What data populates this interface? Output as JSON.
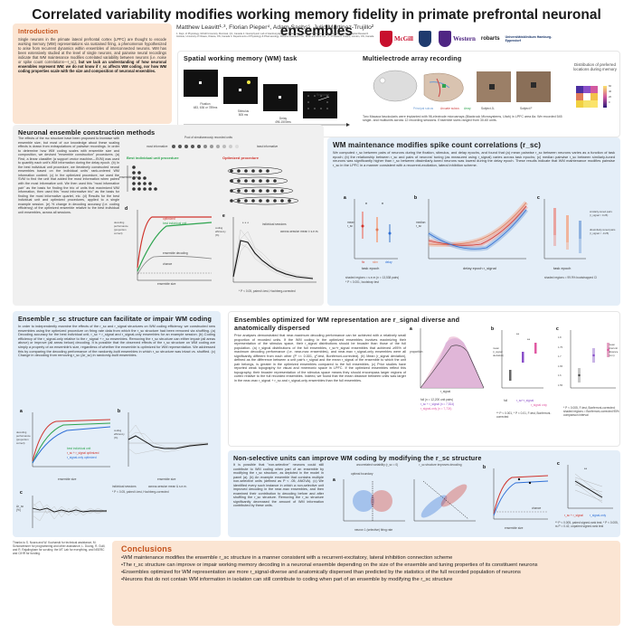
{
  "poster": {
    "title": "Correlated variability modifies working memory fidelity in primate prefrontal neuronal ensembles",
    "authors": "Matthew Leavitt¹·³, Florian Pieper⁴, Adam Sachs⁵, Julio Martinez-Trujillo²",
    "affiliations": "1. Dept. of Physiology, McGill University, Montreal, QC, Canada 2. Neurophysiol. Lab of Hamburg-Eppendorf, Hamburg, Germany 3. Division of Neurosurgery, Ottawa Hospital Research Institute, University of Ottawa, Ottawa, ON, Canada 4. Departments of Physiology & Pharmacology, Robarts Research Inst., Brain and Mind Inst., U. of Western Ontario, London, ON, Canada"
  },
  "logos": {
    "mcgill": "McGill",
    "western": "Western",
    "robarts": "robarts",
    "uke": "Universitätsklinikum Hamburg-Eppendorf"
  },
  "intro": {
    "heading": "Introduction",
    "text": "Single neurons in the primate lateral prefrontal cortex (LPFC) are thought to encode working memory (WM) representations via sustained firing, a phenomenon hypothesized to arise from recurrent dynamics within ensembles of interconnected neurons. WM has been extensively studied at the level of single neurons, and pairwise neural recordings indicate that WM maintenance modifies correlated variability between neurons (i.e. noise or spike count correlations—r_sc),",
    "bold": "but we lack an understanding of how neuronal ensembles represent WM: we do not know if r_sc affects WM coding, nor how WM coding properties scale with the size and composition of neuronal ensembles."
  },
  "task": {
    "heading": "Spatial working memory (WM) task",
    "epochs": [
      {
        "name": "Fixation",
        "dur": "483, 636 or 789ms"
      },
      {
        "name": "Stimulus",
        "dur": "505 ms"
      },
      {
        "name": "Delay",
        "dur": "496-1500ms"
      },
      {
        "name": "Response",
        "dur": ""
      }
    ]
  },
  "array": {
    "heading": "Multielectrode array recording",
    "legend_items": [
      "Principal sulcus",
      "Arcuate sulcus",
      "Array"
    ],
    "subjects": [
      "Subject JL",
      "Subject F"
    ],
    "caption": "Two Macaca fascicularis were implanted with 96-electrode microarrays (Blackrock Microsystems, Utah) in LPFC area 8a. We recorded 545 single- and multiunits across 12 recording sessions. Ensemble sizes ranged from 30-60 units.",
    "map_title": "Distribution of preferred locations during memory",
    "cbar_ticks": [
      "60",
      "40",
      "20",
      "0"
    ],
    "cbar_label": "Number of units"
  },
  "construction": {
    "heading": "Neuronal ensemble construction methods",
    "text": "The effects of the rsc structure have been proposed to increase with ensemble size, but most of our knowledge about these scaling effects is drawn from extrapolations of pairwise recordings. In order to determine how WM coding scales with ensemble size and composition, we devised \"ensemble construction\" procedures. (a) First, a linear classifier (a support vector machine—SVM) was used to quantify each unit's WM information during the delay epoch. (b) In the best individual unit procedure, we iteratively constructed neural ensembles based on the individual units' rank-ordered WM information content. (c) In the optimized procedure, we used the SVM to find the unit that added the most information when paired with the most informative unit. We then used this \"most informative pair\" as the basis for finding the trio of units that maximized WM information, then used this \"most informative trio\" as the basis for finding the most informative quartet, etc. (d) Results for the best individual unit and optimized procedures, applied to a single example session. (e) % change in decoding accuracy (i.e. coding efficiency) of the optimized ensemble relative to the best individual unit ensembles, across all sessions.",
    "pool_label": "Pool of simultaneously recorded units",
    "most_info": "most informative",
    "least_info": "least informative",
    "best_label": "Best individual unit procedure",
    "opt_label": "Optimized procedure",
    "ens_size": "ensemble size",
    "d_ylabel": "decoding performance (proportion correct)",
    "d_xlabel": "ensemble size",
    "e_ylabel": "coding efficiency (%)",
    "e_legend": [
      "individual sessions",
      "across-session mean ± s.e.m."
    ],
    "e_note": "* P < 0.05, paired t-test, Hochberg-corrected",
    "d_legend": [
      "optimized",
      "best individual unit",
      "ensemble decoding",
      "chance"
    ]
  },
  "rsc": {
    "heading": "WM maintenance modifies spike count correlations (r_sc)",
    "text": "We computed r_sc between pairs of neurons during the fixation, stimulus, and delay epochs, and found that (a) mean pairwise r_sc between neurons varies as a function of task epoch; (b) the relationship between r_sc and pairs of neurons' tuning (as measured using r_signal) varies across task epochs; (c) median pairwise r_sc between similarly-tuned neurons was significantly higher than r_sc between dissimilarly-tuned neurons was lowest during the delay epoch. These results indicate that WM maintenance modifies pairwise r_sc in the LPFC in a manner consistent with a recurrent-excitation, lateral inhibition scheme.",
    "a_xlabel": "task epoch",
    "a_ylabel": "mean r_sc",
    "a_epochs": [
      "fix",
      "stim",
      "delay"
    ],
    "b_xlabel": "delay epoch r_signal",
    "b_ylabel": "median r_sc",
    "c_xlabel": "task epoch",
    "c_legend": [
      "similarly-tuned pairs (r_signal > 0.25)",
      "dissimilarly-tuned pairs (r_signal < -0.25)"
    ],
    "a_note": "shaded regions = s.e.m (n = 13,538 pairs)",
    "a_note2": "* P < 0.001, bootstrap test",
    "c_note": "shaded regions = 99.9% bootstrapped CI"
  },
  "ensemble_struct": {
    "heading": "Ensemble r_sc structure can facilitate or impair WM coding",
    "text": "In order to independently examine the effects of the r_sc and r_signal structures on WM coding efficiency, we constructed new ensembles using the optimized procedure on firing rate data from which the r_sc structure had been removed via shuffling. (a) Decoding accuracy for the best individual unit, r_sc + r_signal and r_signal-only ensembles for an example session. (b) Coding efficiency of the r_signal-only relative to the r_signal + r_sc ensembles. Removing the r_sc structure can either impair (all areas above) or improve (all areas below) decoding. It is possible that the observed effects of the r_sc structure on WM coding are simply a property of an ensemble's size, regardless of whether the ensemble is optimized for WM representation. We addressed this by comparing the decoding performance of the randomly-built ensembles in which r_sc structure was intact vs. shuffled. (c) Change in decoding from removing r_sc (Δr_sc) in randomly-built ensembles.",
    "a_xlabel": "ensemble size",
    "a_ylabel": "decoding performance (proportion correct)",
    "a_legend": [
      "best individual unit",
      "r_sc + r_signal optimized",
      "r_signal-only optimized"
    ],
    "b_ylabel": "coding efficiency (%)",
    "b_xlabel": "ensemble size",
    "legend": [
      "individual sessions",
      "across-session mean & s.e.m."
    ],
    "note": "* P < 0.05, paired t-test, Hochberg-corrected",
    "c_ylabel": "Δr_sc (%)",
    "c_xlabel": "ensemble size"
  },
  "optimized": {
    "heading": "Ensembles optimized for WM representation are r_signal diverse and anatomically dispersed",
    "text": "Prior analyses demonstrated that near-maximum decoding performance can be achieved with a relatively small proportion of recorded units. If the WM coding in the optimized ensembles involves maximizing their representation of the stimulus space, their r_signal distributions should be broader than those of the full population. (a) r_signal distributions of the full ensembles, r_sc+r_signal ensembles that achieved ≥95% of maximum decoding performance (i.e. near-max ensembles), and near-max r_signal-only ensembles were all significantly different from each other (P << 0.001, χ²-test, Bonferroni-corrected). (b) Mean |r_signal deviation|, defined as the difference between a unit pair's r_signal and the mean r_signal of the ensemble to which the unit pair belongs, is greater in the optimized ensembles compared to the full ensembles. (c) Prior studies have reported weak topography for visual and mnemonic space in LPFC. If the optimized ensembles reflect this topography, their broader representation of the stimulus space means they should encompass larger regions of cortex relative to the full recorded ensembles. Indeed, we found that the mean distance between units was larger in the near-max r_signal + r_sc and r_signal-only ensembles than the full ensembles.",
    "a_ylabel": "proportion",
    "a_xlabel": "r_signal",
    "a_legend": [
      "full (n = 12,200 unit pairs)",
      "r_sc + r_signal (n = 7,814)",
      "r_signal-only (n = 7,724)"
    ],
    "b_ylabel": "mean |r_signal deviation|",
    "b_cats": [
      "full",
      "r_sc+r_signal",
      "r_signal only"
    ],
    "b_note": "** P < 0.001, * P < 0.01, F-test, Bonferroni-corrected",
    "c_ylabel": "mean interunit distance (mm)",
    "c_note": "* P < 0.005, F-test, Bonferroni-corrected; shaded regions = Bonferroni-corrected 95% comparison interval",
    "c_yticks": [
      "1.8",
      "1.75",
      "1.7",
      "1.65",
      "1.6",
      "1.55"
    ]
  },
  "nonselective": {
    "heading": "Non-selective units can improve WM coding by modifying the r_sc structure",
    "text": "It is possible that \"non-selective\" neurons could still contribute to WM coding when part of an ensemble by modifying the r_sc structure, as depicted in the model in panel (a). (b) An example ensemble that contains multiple non-selective units (defined as P < .05, ANOVA). (c) We identified every such instance in which a non-selective unit improved decoding in the near-max ensembles, and then examined their contribution to decoding before and after shuffling the r_sc structure. Removing the r_sc structure significantly decreased the amount of WM information contributed by these units.",
    "a_title1": "uncorrelated variability (r_sc = 0)",
    "a_title2": "r_sc structure improves decoding",
    "a_sub": "optimal boundary",
    "a_xlabel": "neuron 1 (selective) firing rate",
    "a_ylabel": "neuron 2 (non-selective) firing rate",
    "b_xlabel": "ensemble size",
    "b_ylabel": "decoding performance (proportion correct)",
    "b_chance": "chance",
    "c_ylabel": "change in decoding accuracy from adding non-selective unit (%)",
    "c_cats": [
      "r_sc + r_signal",
      "r_signal-only"
    ],
    "c_note": "** P < 0.005, paired signed-rank test; * P < 0.005, rs P = 0.42, unpaired signed-rank test"
  },
  "conclusions": {
    "heading": "Conclusions",
    "items": [
      "•WM maintenance modifies the ensemble r_sc structure in a manner consistent with a recurrent-excitatory, lateral inhibition connection scheme",
      "•The r_sc structure can improve or impair working memory decoding in a neuronal ensemble depending on the size of the ensemble and tuning properties of its constituent neurons",
      "•Ensembles optimized for WM representation are more r_signal-diverse and anatomically dispersed than predicted by the statistics of the full recorded population of neurons",
      "•Neurons that do not contain WM information in isolation can still contribute to coding when part of an ensemble by modifying the r_sc structure"
    ]
  },
  "thanks": "Thanks to S. Nuara and W. Kucharski for technical assistance, M. Schonwiesner for programming and other assistance, L. Duong, R. Gulli, and R. Rajalingham for scrutiny, the MT Lab for everything, and NSERC and CIHR for funding.",
  "colors": {
    "orange_bg": "#fbe5d3",
    "blue_bg": "#e4eef8",
    "accent_green": "#2ea44f",
    "accent_red": "#d0342c",
    "accent_blue": "#2f6fd6",
    "accent_purple": "#8a4fc9",
    "accent_pink": "#e05aa3"
  }
}
